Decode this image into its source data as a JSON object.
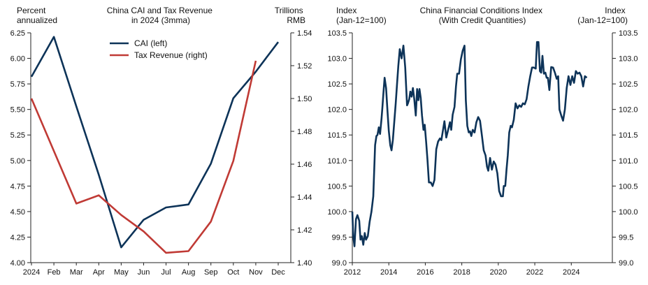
{
  "chart_data": [
    {
      "type": "line",
      "title": "China CAI and Tax Revenue\nin 2024 (3mma)",
      "left_axis_label": "Percent\nannualized",
      "right_axis_label": "Trillions\nRMB",
      "categories": [
        "2024",
        "Feb",
        "Mar",
        "Apr",
        "May",
        "Jun",
        "Jul",
        "Aug",
        "Sep",
        "Oct",
        "Nov",
        "Dec"
      ],
      "ylim_left": [
        4.0,
        6.25
      ],
      "left_ticks": [
        "4.00",
        "4.25",
        "4.50",
        "4.75",
        "5.00",
        "5.25",
        "5.50",
        "5.75",
        "6.00",
        "6.25"
      ],
      "ylim_right": [
        1.4,
        1.54
      ],
      "right_ticks": [
        "1.40",
        "1.42",
        "1.44",
        "1.46",
        "1.48",
        "1.50",
        "1.52",
        "1.54"
      ],
      "legend_position": "top-center",
      "series": [
        {
          "name": "CAI (left)",
          "axis": "left",
          "color": "#0d3358",
          "values": [
            5.82,
            6.21,
            5.53,
            4.86,
            4.15,
            4.42,
            4.54,
            4.57,
            4.97,
            5.61,
            5.87,
            6.16
          ]
        },
        {
          "name": "Tax Revenue (right)",
          "axis": "right",
          "color": "#c03a35",
          "values": [
            1.5,
            1.468,
            1.436,
            1.441,
            1.429,
            1.419,
            1.406,
            1.407,
            1.425,
            1.462,
            1.523,
            null
          ]
        }
      ]
    },
    {
      "type": "line",
      "title": "China Financial Conditions Index\n(With Credit Quantities)",
      "left_axis_label": "Index\n(Jan-12=100)",
      "right_axis_label": "Index\n(Jan-12=100)",
      "xlim": [
        2012,
        2026.25
      ],
      "x_ticks": [
        "2012",
        "2014",
        "2016",
        "2018",
        "2020",
        "2022",
        "2024"
      ],
      "ylim": [
        99.0,
        103.5
      ],
      "y_ticks": [
        "99.0",
        "99.5",
        "100.0",
        "100.5",
        "101.0",
        "101.5",
        "102.0",
        "102.5",
        "103.0",
        "103.5"
      ],
      "series": [
        {
          "color": "#0d3358",
          "x": [
            2012.0,
            2012.05,
            2012.12,
            2012.2,
            2012.28,
            2012.38,
            2012.45,
            2012.52,
            2012.6,
            2012.68,
            2012.75,
            2012.85,
            2012.95,
            2013.05,
            2013.15,
            2013.25,
            2013.32,
            2013.38,
            2013.45,
            2013.52,
            2013.6,
            2013.65,
            2013.7,
            2013.77,
            2013.85,
            2013.93,
            2014.0,
            2014.08,
            2014.15,
            2014.22,
            2014.3,
            2014.38,
            2014.45,
            2014.52,
            2014.6,
            2014.7,
            2014.8,
            2014.9,
            2015.0,
            2015.05,
            2015.12,
            2015.18,
            2015.25,
            2015.32,
            2015.4,
            2015.48,
            2015.55,
            2015.62,
            2015.68,
            2015.75,
            2015.82,
            2015.9,
            2015.97,
            2016.05,
            2016.12,
            2016.2,
            2016.3,
            2016.4,
            2016.5,
            2016.6,
            2016.7,
            2016.8,
            2016.88,
            2016.95,
            2017.05,
            2017.15,
            2017.25,
            2017.35,
            2017.42,
            2017.5,
            2017.6,
            2017.68,
            2017.75,
            2017.85,
            2017.95,
            2018.05,
            2018.15,
            2018.22,
            2018.3,
            2018.38,
            2018.45,
            2018.52,
            2018.6,
            2018.7,
            2018.8,
            2018.9,
            2019.0,
            2019.1,
            2019.2,
            2019.3,
            2019.38,
            2019.45,
            2019.55,
            2019.65,
            2019.75,
            2019.85,
            2019.95,
            2020.05,
            2020.15,
            2020.25,
            2020.3,
            2020.38,
            2020.45,
            2020.52,
            2020.6,
            2020.68,
            2020.75,
            2020.85,
            2020.95,
            2021.05,
            2021.15,
            2021.25,
            2021.35,
            2021.45,
            2021.55,
            2021.65,
            2021.75,
            2021.85,
            2021.95,
            2022.05,
            2022.12,
            2022.2,
            2022.28,
            2022.35,
            2022.42,
            2022.5,
            2022.58,
            2022.65,
            2022.72,
            2022.8,
            2022.9,
            2023.0,
            2023.1,
            2023.2,
            2023.28,
            2023.35,
            2023.45,
            2023.55,
            2023.65,
            2023.75,
            2023.85,
            2023.95,
            2024.05,
            2024.15,
            2024.25,
            2024.35,
            2024.45,
            2024.55,
            2024.65,
            2024.75,
            2024.85
          ],
          "y": [
            100.0,
            99.52,
            99.32,
            99.85,
            99.93,
            99.82,
            99.45,
            99.52,
            99.35,
            99.58,
            99.45,
            99.52,
            99.8,
            100.0,
            100.3,
            101.3,
            101.48,
            101.5,
            101.65,
            101.52,
            101.82,
            102.05,
            102.3,
            102.62,
            102.42,
            101.95,
            101.58,
            101.3,
            101.2,
            101.4,
            101.75,
            102.12,
            102.5,
            102.85,
            103.18,
            103.0,
            103.25,
            102.82,
            102.08,
            102.12,
            102.2,
            102.35,
            102.25,
            102.42,
            102.18,
            101.88,
            102.4,
            102.18,
            102.4,
            102.22,
            101.88,
            101.6,
            101.7,
            101.35,
            101.0,
            100.57,
            100.57,
            100.5,
            100.62,
            101.22,
            101.37,
            101.43,
            101.4,
            101.55,
            101.77,
            101.45,
            101.6,
            101.75,
            101.6,
            101.9,
            102.05,
            102.45,
            102.7,
            102.7,
            102.98,
            103.15,
            103.25,
            102.18,
            101.68,
            101.55,
            101.57,
            101.48,
            101.6,
            101.55,
            101.75,
            101.85,
            101.78,
            101.5,
            101.2,
            101.1,
            100.88,
            100.8,
            101.05,
            100.82,
            100.98,
            100.92,
            100.75,
            100.4,
            100.3,
            100.3,
            100.5,
            100.5,
            100.82,
            101.1,
            101.55,
            101.68,
            101.65,
            101.8,
            102.12,
            102.02,
            102.08,
            102.05,
            102.12,
            102.1,
            102.2,
            102.45,
            102.65,
            102.82,
            102.82,
            102.8,
            103.32,
            103.32,
            102.75,
            102.72,
            103.05,
            102.7,
            102.72,
            102.62,
            102.62,
            102.38,
            102.83,
            102.82,
            102.72,
            102.6,
            102.65,
            102.0,
            101.88,
            101.78,
            102.0,
            102.42,
            102.65,
            102.48,
            102.65,
            102.52,
            102.75,
            102.7,
            102.72,
            102.65,
            102.45,
            102.65,
            102.62
          ]
        }
      ]
    }
  ]
}
